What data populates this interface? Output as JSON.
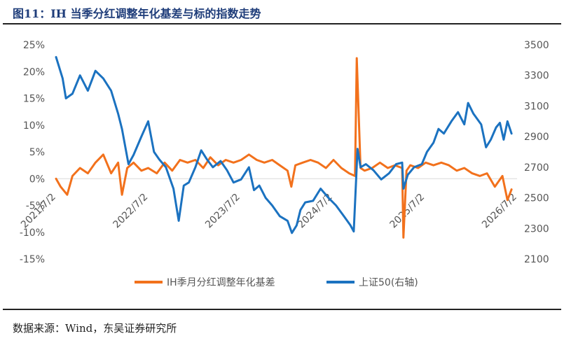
{
  "header": {
    "title": "图11：IH 当季分红调整年化基差与标的指数走势"
  },
  "footer": {
    "source": "数据来源：Wind，东吴证券研究所"
  },
  "colors": {
    "basis": "#f2711c",
    "index": "#1b72c0",
    "rule": "#222222"
  },
  "chart_data": {
    "type": "line",
    "title": "IH 当季分红调整年化基差与标的指数走势",
    "x_ticks": [
      "2021/7/2",
      "2022/7/2",
      "2023/7/2",
      "2024/7/2",
      "2025/7/2",
      "2026/7/2"
    ],
    "x_range": [
      "2021-07-02",
      "2026-07-02"
    ],
    "y_left": {
      "ticks": [
        "25%",
        "20%",
        "15%",
        "10%",
        "5%",
        "0%",
        "-5%",
        "-10%",
        "-15%"
      ],
      "range": [
        -0.15,
        0.25
      ]
    },
    "y_right": {
      "ticks": [
        "3500",
        "3300",
        "3100",
        "2900",
        "2700",
        "2500",
        "2300",
        "2100"
      ],
      "range": [
        2100,
        3500
      ]
    },
    "legend_position": "bottom-center",
    "series": [
      {
        "name": "IH季月分红调整年化基差",
        "axis": "left",
        "color": "#f2711c",
        "points": [
          [
            "2021-07-02",
            0.0
          ],
          [
            "2021-07-20",
            -0.015
          ],
          [
            "2021-08-15",
            -0.03
          ],
          [
            "2021-09-05",
            0.005
          ],
          [
            "2021-10-05",
            0.02
          ],
          [
            "2021-11-05",
            0.01
          ],
          [
            "2021-12-05",
            0.03
          ],
          [
            "2022-01-05",
            0.045
          ],
          [
            "2022-02-05",
            0.01
          ],
          [
            "2022-03-05",
            0.03
          ],
          [
            "2022-03-20",
            -0.03
          ],
          [
            "2022-04-10",
            0.02
          ],
          [
            "2022-05-05",
            0.03
          ],
          [
            "2022-06-05",
            0.015
          ],
          [
            "2022-07-02",
            0.02
          ],
          [
            "2022-08-05",
            0.01
          ],
          [
            "2022-09-05",
            0.03
          ],
          [
            "2022-10-05",
            0.015
          ],
          [
            "2022-11-05",
            0.035
          ],
          [
            "2022-12-05",
            0.03
          ],
          [
            "2023-01-05",
            0.035
          ],
          [
            "2023-02-05",
            0.02
          ],
          [
            "2023-03-05",
            0.04
          ],
          [
            "2023-04-05",
            0.025
          ],
          [
            "2023-05-05",
            0.035
          ],
          [
            "2023-06-05",
            0.03
          ],
          [
            "2023-07-05",
            0.035
          ],
          [
            "2023-08-05",
            0.045
          ],
          [
            "2023-09-05",
            0.035
          ],
          [
            "2023-10-05",
            0.03
          ],
          [
            "2023-11-05",
            0.035
          ],
          [
            "2023-12-05",
            0.025
          ],
          [
            "2024-01-05",
            0.015
          ],
          [
            "2024-01-20",
            -0.015
          ],
          [
            "2024-02-05",
            0.025
          ],
          [
            "2024-03-05",
            0.03
          ],
          [
            "2024-04-05",
            0.035
          ],
          [
            "2024-05-05",
            0.03
          ],
          [
            "2024-06-05",
            0.02
          ],
          [
            "2024-07-05",
            0.035
          ],
          [
            "2024-08-05",
            0.02
          ],
          [
            "2024-09-05",
            0.01
          ],
          [
            "2024-09-28",
            0.005
          ],
          [
            "2024-10-05",
            0.225
          ],
          [
            "2024-10-20",
            0.02
          ],
          [
            "2024-11-05",
            0.015
          ],
          [
            "2024-12-05",
            0.02
          ],
          [
            "2025-01-05",
            0.03
          ],
          [
            "2025-02-05",
            0.02
          ],
          [
            "2025-03-05",
            0.025
          ],
          [
            "2025-04-03",
            0.02
          ],
          [
            "2025-04-08",
            -0.11
          ],
          [
            "2025-04-20",
            0.015
          ],
          [
            "2025-05-05",
            0.025
          ],
          [
            "2025-06-05",
            0.02
          ],
          [
            "2025-07-05",
            0.03
          ],
          [
            "2025-08-05",
            0.025
          ],
          [
            "2025-09-05",
            0.03
          ],
          [
            "2025-10-05",
            0.025
          ],
          [
            "2025-11-05",
            0.015
          ],
          [
            "2025-12-05",
            0.02
          ],
          [
            "2026-01-05",
            0.01
          ],
          [
            "2026-02-05",
            0.005
          ],
          [
            "2026-03-05",
            0.01
          ],
          [
            "2026-04-05",
            -0.015
          ],
          [
            "2026-05-05",
            0.005
          ],
          [
            "2026-05-25",
            -0.04
          ],
          [
            "2026-06-10",
            -0.02
          ]
        ]
      },
      {
        "name": "上证50(右轴)",
        "axis": "right",
        "color": "#1b72c0",
        "points": [
          [
            "2021-07-02",
            3420
          ],
          [
            "2021-07-28",
            3280
          ],
          [
            "2021-08-10",
            3150
          ],
          [
            "2021-09-05",
            3180
          ],
          [
            "2021-10-05",
            3300
          ],
          [
            "2021-11-05",
            3200
          ],
          [
            "2021-12-05",
            3330
          ],
          [
            "2022-01-05",
            3280
          ],
          [
            "2022-02-05",
            3200
          ],
          [
            "2022-03-05",
            3050
          ],
          [
            "2022-03-20",
            2950
          ],
          [
            "2022-04-15",
            2720
          ],
          [
            "2022-05-05",
            2780
          ],
          [
            "2022-06-05",
            2900
          ],
          [
            "2022-07-02",
            3000
          ],
          [
            "2022-07-25",
            2800
          ],
          [
            "2022-08-15",
            2750
          ],
          [
            "2022-09-10",
            2700
          ],
          [
            "2022-10-10",
            2560
          ],
          [
            "2022-10-31",
            2350
          ],
          [
            "2022-11-20",
            2580
          ],
          [
            "2022-12-10",
            2600
          ],
          [
            "2023-01-05",
            2700
          ],
          [
            "2023-01-28",
            2810
          ],
          [
            "2023-02-20",
            2750
          ],
          [
            "2023-03-15",
            2700
          ],
          [
            "2023-04-15",
            2740
          ],
          [
            "2023-05-10",
            2680
          ],
          [
            "2023-06-05",
            2600
          ],
          [
            "2023-07-05",
            2620
          ],
          [
            "2023-08-05",
            2700
          ],
          [
            "2023-08-25",
            2550
          ],
          [
            "2023-09-15",
            2580
          ],
          [
            "2023-10-10",
            2500
          ],
          [
            "2023-11-05",
            2450
          ],
          [
            "2023-12-05",
            2380
          ],
          [
            "2024-01-05",
            2350
          ],
          [
            "2024-01-22",
            2270
          ],
          [
            "2024-02-10",
            2320
          ],
          [
            "2024-02-25",
            2420
          ],
          [
            "2024-03-15",
            2470
          ],
          [
            "2024-04-15",
            2480
          ],
          [
            "2024-05-15",
            2560
          ],
          [
            "2024-06-15",
            2500
          ],
          [
            "2024-07-15",
            2450
          ],
          [
            "2024-08-15",
            2380
          ],
          [
            "2024-09-10",
            2320
          ],
          [
            "2024-09-23",
            2280
          ],
          [
            "2024-10-08",
            2820
          ],
          [
            "2024-10-20",
            2700
          ],
          [
            "2024-11-10",
            2720
          ],
          [
            "2024-12-10",
            2680
          ],
          [
            "2025-01-10",
            2620
          ],
          [
            "2025-02-10",
            2660
          ],
          [
            "2025-03-10",
            2720
          ],
          [
            "2025-04-03",
            2730
          ],
          [
            "2025-04-08",
            2560
          ],
          [
            "2025-04-25",
            2650
          ],
          [
            "2025-05-20",
            2700
          ],
          [
            "2025-06-20",
            2720
          ],
          [
            "2025-07-10",
            2800
          ],
          [
            "2025-08-05",
            2860
          ],
          [
            "2025-08-25",
            2950
          ],
          [
            "2025-09-15",
            2920
          ],
          [
            "2025-10-15",
            3000
          ],
          [
            "2025-11-10",
            3060
          ],
          [
            "2025-12-05",
            2980
          ],
          [
            "2025-12-20",
            3120
          ],
          [
            "2026-01-10",
            3050
          ],
          [
            "2026-02-10",
            2980
          ],
          [
            "2026-03-01",
            2830
          ],
          [
            "2026-03-20",
            2880
          ],
          [
            "2026-04-10",
            2960
          ],
          [
            "2026-04-25",
            2990
          ],
          [
            "2026-05-10",
            2880
          ],
          [
            "2026-05-25",
            3000
          ],
          [
            "2026-06-10",
            2920
          ]
        ]
      }
    ]
  }
}
